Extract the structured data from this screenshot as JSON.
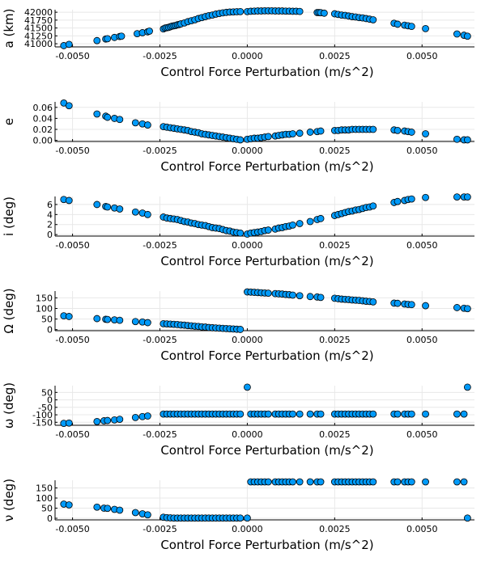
{
  "chart_data": [
    {
      "type": "scatter",
      "xlabel": "Control Force Perturbation (m/s^2)",
      "ylabel": "a (km)",
      "xlim": [
        -0.0055,
        0.0065
      ],
      "ylim": [
        40900,
        42080
      ],
      "xticks": [
        "-0.0050",
        "-0.0025",
        "0.0000",
        "0.0025",
        "0.0050"
      ],
      "xtick_values": [
        -0.005,
        -0.0025,
        0,
        0.0025,
        0.005
      ],
      "yticks": [
        "41000",
        "41250",
        "41500",
        "41750",
        "42000"
      ],
      "ytick_values": [
        41000,
        41250,
        41500,
        41750,
        42000
      ],
      "grid": true,
      "x": [
        -0.00525,
        -0.0051,
        -0.0043,
        -0.00405,
        -0.004,
        -0.0038,
        -0.00365,
        -0.0036,
        -0.00315,
        -0.003,
        -0.00285,
        -0.0028,
        -0.0024,
        -0.00235,
        -0.0023,
        -0.00225,
        -0.0022,
        -0.00215,
        -0.0021,
        -0.00205,
        -0.002,
        -0.00195,
        -0.0019,
        -0.0018,
        -0.0017,
        -0.0016,
        -0.0015,
        -0.0014,
        -0.0013,
        -0.0012,
        -0.0011,
        -0.001,
        -0.0009,
        -0.0008,
        -0.0007,
        -0.0006,
        -0.0005,
        -0.0004,
        -0.0003,
        -0.0002,
        0.0,
        0.0001,
        0.0002,
        0.0003,
        0.0004,
        0.0005,
        0.0006,
        0.0007,
        0.0008,
        0.0009,
        0.001,
        0.0011,
        0.0012,
        0.0013,
        0.0014,
        0.0015,
        0.002,
        0.00205,
        0.0021,
        0.0022,
        0.0025,
        0.0026,
        0.0027,
        0.0028,
        0.0029,
        0.003,
        0.0031,
        0.0032,
        0.0033,
        0.0034,
        0.0035,
        0.0036,
        0.0042,
        0.0043,
        0.0045,
        0.0046,
        0.0047,
        0.0051,
        0.006,
        0.0062,
        0.0063
      ],
      "y": [
        40940,
        40980,
        41100,
        41150,
        41160,
        41200,
        41230,
        41240,
        41320,
        41350,
        41380,
        41400,
        41470,
        41500,
        41510,
        41520,
        41540,
        41560,
        41570,
        41580,
        41600,
        41610,
        41630,
        41660,
        41700,
        41730,
        41760,
        41800,
        41830,
        41860,
        41890,
        41910,
        41940,
        41960,
        41980,
        41995,
        42005,
        42010,
        42015,
        42020,
        42020,
        42030,
        42035,
        42040,
        42040,
        42045,
        42045,
        42045,
        42040,
        42040,
        42040,
        42035,
        42035,
        42030,
        42030,
        42025,
        41990,
        41990,
        41985,
        41970,
        41950,
        41930,
        41910,
        41900,
        41880,
        41860,
        41850,
        41830,
        41820,
        41800,
        41780,
        41760,
        41650,
        41620,
        41590,
        41570,
        41550,
        41480,
        41310,
        41270,
        41240
      ]
    },
    {
      "type": "scatter",
      "xlabel": "Control Force Perturbation (m/s^2)",
      "ylabel": "e",
      "xlim": [
        -0.0055,
        0.0065
      ],
      "ylim": [
        -0.002,
        0.07
      ],
      "xticks": [
        "-0.0050",
        "-0.0025",
        "0.0000",
        "0.0025",
        "0.0050"
      ],
      "xtick_values": [
        -0.005,
        -0.0025,
        0,
        0.0025,
        0.005
      ],
      "yticks": [
        "0.00",
        "0.02",
        "0.04",
        "0.06"
      ],
      "ytick_values": [
        0,
        0.02,
        0.04,
        0.06
      ],
      "grid": true,
      "x": [
        -0.00525,
        -0.0051,
        -0.0043,
        -0.00405,
        -0.004,
        -0.0038,
        -0.00365,
        -0.0032,
        -0.003,
        -0.00285,
        -0.0024,
        -0.0023,
        -0.0022,
        -0.0021,
        -0.002,
        -0.0019,
        -0.0018,
        -0.0017,
        -0.0016,
        -0.0015,
        -0.0014,
        -0.0013,
        -0.0012,
        -0.0011,
        -0.001,
        -0.0009,
        -0.0008,
        -0.0007,
        -0.0006,
        -0.0005,
        -0.0004,
        -0.0003,
        -0.0002,
        0.0,
        0.0001,
        0.0002,
        0.0003,
        0.0004,
        0.0005,
        0.0006,
        0.0008,
        0.0009,
        0.001,
        0.0011,
        0.0012,
        0.0013,
        0.0015,
        0.0018,
        0.002,
        0.0021,
        0.0025,
        0.0026,
        0.0027,
        0.0028,
        0.0029,
        0.003,
        0.0031,
        0.0032,
        0.0033,
        0.0034,
        0.0035,
        0.0036,
        0.0042,
        0.0043,
        0.0045,
        0.0046,
        0.0047,
        0.0051,
        0.006,
        0.0062,
        0.0063
      ],
      "y": [
        0.068,
        0.063,
        0.048,
        0.044,
        0.042,
        0.04,
        0.038,
        0.032,
        0.03,
        0.028,
        0.025,
        0.024,
        0.023,
        0.022,
        0.021,
        0.02,
        0.019,
        0.018,
        0.016,
        0.015,
        0.014,
        0.012,
        0.011,
        0.01,
        0.009,
        0.008,
        0.007,
        0.006,
        0.005,
        0.004,
        0.003,
        0.002,
        0.001,
        0.002,
        0.003,
        0.004,
        0.004,
        0.005,
        0.006,
        0.007,
        0.008,
        0.009,
        0.01,
        0.011,
        0.011,
        0.012,
        0.013,
        0.015,
        0.016,
        0.017,
        0.018,
        0.018,
        0.019,
        0.019,
        0.019,
        0.02,
        0.02,
        0.02,
        0.02,
        0.02,
        0.02,
        0.02,
        0.019,
        0.018,
        0.017,
        0.016,
        0.015,
        0.012,
        0.002,
        0.001,
        0.001
      ]
    },
    {
      "type": "scatter",
      "xlabel": "Control Force Perturbation (m/s^2)",
      "ylabel": "i (deg)",
      "xlim": [
        -0.0055,
        0.0065
      ],
      "ylim": [
        -0.3,
        7.6
      ],
      "xticks": [
        "-0.0050",
        "-0.0025",
        "0.0000",
        "0.0025",
        "0.0050"
      ],
      "xtick_values": [
        -0.005,
        -0.0025,
        0,
        0.0025,
        0.005
      ],
      "yticks": [
        "0",
        "2",
        "4",
        "6"
      ],
      "ytick_values": [
        0,
        2,
        4,
        6
      ],
      "grid": true,
      "x": [
        -0.00525,
        -0.0051,
        -0.0043,
        -0.00405,
        -0.004,
        -0.0038,
        -0.00365,
        -0.0032,
        -0.003,
        -0.00285,
        -0.0024,
        -0.0023,
        -0.0022,
        -0.0021,
        -0.002,
        -0.0019,
        -0.0018,
        -0.0017,
        -0.0016,
        -0.0015,
        -0.0014,
        -0.0013,
        -0.0012,
        -0.0011,
        -0.001,
        -0.0009,
        -0.0008,
        -0.0007,
        -0.0006,
        -0.0005,
        -0.0004,
        -0.0003,
        -0.0002,
        0.0,
        0.0001,
        0.0002,
        0.0003,
        0.0004,
        0.0005,
        0.0006,
        0.0008,
        0.0009,
        0.001,
        0.0011,
        0.0012,
        0.0013,
        0.0015,
        0.0018,
        0.002,
        0.0021,
        0.0025,
        0.0026,
        0.0027,
        0.0028,
        0.0029,
        0.003,
        0.0031,
        0.0032,
        0.0033,
        0.0034,
        0.0035,
        0.0036,
        0.0042,
        0.0043,
        0.0045,
        0.0046,
        0.0047,
        0.0051,
        0.006,
        0.0062,
        0.0063
      ],
      "y": [
        7.0,
        6.8,
        6.0,
        5.6,
        5.5,
        5.3,
        5.1,
        4.5,
        4.3,
        4.0,
        3.5,
        3.3,
        3.2,
        3.1,
        3.0,
        2.8,
        2.6,
        2.5,
        2.3,
        2.2,
        2.0,
        1.9,
        1.8,
        1.6,
        1.4,
        1.3,
        1.2,
        1.0,
        0.8,
        0.7,
        0.5,
        0.4,
        0.3,
        0.1,
        0.3,
        0.4,
        0.5,
        0.6,
        0.8,
        0.9,
        1.1,
        1.3,
        1.4,
        1.6,
        1.7,
        1.9,
        2.2,
        2.6,
        3.0,
        3.2,
        3.8,
        4.0,
        4.2,
        4.4,
        4.6,
        4.7,
        4.9,
        5.0,
        5.2,
        5.4,
        5.5,
        5.7,
        6.4,
        6.6,
        6.8,
        7.0,
        7.1,
        7.4,
        7.5,
        7.5,
        7.5
      ]
    },
    {
      "type": "scatter",
      "xlabel": "Control Force Perturbation (m/s^2)",
      "ylabel": "Ω (deg)",
      "xlim": [
        -0.0055,
        0.0065
      ],
      "ylim": [
        -5,
        182
      ],
      "xticks": [
        "-0.0050",
        "-0.0025",
        "0.0000",
        "0.0025",
        "0.0050"
      ],
      "xtick_values": [
        -0.005,
        -0.0025,
        0,
        0.0025,
        0.005
      ],
      "yticks": [
        "0",
        "50",
        "100",
        "150"
      ],
      "ytick_values": [
        0,
        50,
        100,
        150
      ],
      "grid": true,
      "x": [
        -0.00525,
        -0.0051,
        -0.0043,
        -0.00405,
        -0.004,
        -0.0038,
        -0.00365,
        -0.0032,
        -0.003,
        -0.00285,
        -0.0024,
        -0.0023,
        -0.0022,
        -0.0021,
        -0.002,
        -0.0019,
        -0.0018,
        -0.0017,
        -0.0016,
        -0.0015,
        -0.0014,
        -0.0013,
        -0.0012,
        -0.0011,
        -0.001,
        -0.0009,
        -0.0008,
        -0.0007,
        -0.0006,
        -0.0005,
        -0.0004,
        -0.0003,
        -0.0002,
        0.0,
        0.0001,
        0.0002,
        0.0003,
        0.0004,
        0.0005,
        0.0006,
        0.0008,
        0.0009,
        0.001,
        0.0011,
        0.0012,
        0.0013,
        0.0015,
        0.0018,
        0.002,
        0.0021,
        0.0025,
        0.0026,
        0.0027,
        0.0028,
        0.0029,
        0.003,
        0.0031,
        0.0032,
        0.0033,
        0.0034,
        0.0035,
        0.0036,
        0.0042,
        0.0043,
        0.0045,
        0.0046,
        0.0047,
        0.0051,
        0.006,
        0.0062,
        0.0063
      ],
      "y": [
        65,
        62,
        52,
        49,
        48,
        46,
        44,
        38,
        36,
        33,
        28,
        27,
        26,
        25,
        24,
        22,
        21,
        19,
        18,
        16,
        15,
        13,
        12,
        10,
        9,
        8,
        7,
        6,
        5,
        4,
        3,
        2,
        1,
        178,
        177,
        176,
        175,
        174,
        173,
        172,
        170,
        169,
        168,
        166,
        165,
        163,
        160,
        156,
        154,
        152,
        148,
        146,
        144,
        143,
        142,
        140,
        139,
        138,
        136,
        134,
        133,
        131,
        125,
        124,
        121,
        119,
        118,
        113,
        104,
        101,
        99
      ]
    },
    {
      "type": "scatter",
      "xlabel": "Control Force Perturbation (m/s^2)",
      "ylabel": "ω (deg)",
      "xlim": [
        -0.0055,
        0.0065
      ],
      "ylim": [
        -170,
        95
      ],
      "xticks": [
        "-0.0050",
        "-0.0025",
        "0.0000",
        "0.0025",
        "0.0050"
      ],
      "xtick_values": [
        -0.005,
        -0.0025,
        0,
        0.0025,
        0.005
      ],
      "yticks": [
        "-150",
        "-100",
        "-50",
        "0",
        "50"
      ],
      "ytick_values": [
        -150,
        -100,
        -50,
        0,
        50
      ],
      "grid": true,
      "x": [
        -0.00525,
        -0.0051,
        -0.0043,
        -0.0041,
        -0.004,
        -0.0038,
        -0.00365,
        -0.0032,
        -0.003,
        -0.00285,
        -0.0024,
        -0.0023,
        -0.0022,
        -0.0021,
        -0.002,
        -0.0019,
        -0.0018,
        -0.0017,
        -0.0016,
        -0.0015,
        -0.0014,
        -0.0013,
        -0.0012,
        -0.0011,
        -0.001,
        -0.0009,
        -0.0008,
        -0.0007,
        -0.0006,
        -0.0005,
        -0.0004,
        -0.0003,
        -0.0002,
        0.0,
        0.0001,
        0.0002,
        0.0003,
        0.0004,
        0.0005,
        0.0006,
        0.0008,
        0.0009,
        0.001,
        0.0011,
        0.0012,
        0.0013,
        0.0015,
        0.0018,
        0.002,
        0.0021,
        0.0025,
        0.0026,
        0.0027,
        0.0028,
        0.0029,
        0.003,
        0.0031,
        0.0032,
        0.0033,
        0.0034,
        0.0035,
        0.0036,
        0.0042,
        0.0043,
        0.0045,
        0.0046,
        0.0047,
        0.0051,
        0.006,
        0.0062,
        0.0063
      ],
      "y": [
        -157,
        -155,
        -145,
        -140,
        -138,
        -134,
        -130,
        -118,
        -112,
        -108,
        -95,
        -95,
        -95,
        -95,
        -95,
        -95,
        -95,
        -95,
        -95,
        -95,
        -95,
        -95,
        -95,
        -95,
        -95,
        -95,
        -95,
        -95,
        -95,
        -95,
        -95,
        -95,
        -95,
        85,
        -95,
        -95,
        -95,
        -95,
        -95,
        -95,
        -95,
        -95,
        -95,
        -95,
        -95,
        -95,
        -95,
        -95,
        -95,
        -95,
        -95,
        -95,
        -95,
        -95,
        -95,
        -95,
        -95,
        -95,
        -95,
        -95,
        -95,
        -95,
        -95,
        -95,
        -95,
        -95,
        -95,
        -95,
        -95,
        -95,
        85
      ]
    },
    {
      "type": "scatter",
      "xlabel": "Control Force Perturbation (m/s^2)",
      "ylabel": "ν (deg)",
      "xlim": [
        -0.0055,
        0.0065
      ],
      "ylim": [
        -8,
        188
      ],
      "xticks": [
        "-0.0050",
        "-0.0025",
        "0.0000",
        "0.0025",
        "0.0050"
      ],
      "xtick_values": [
        -0.005,
        -0.0025,
        0,
        0.0025,
        0.005
      ],
      "yticks": [
        "0",
        "50",
        "100",
        "150"
      ],
      "ytick_values": [
        0,
        50,
        100,
        150
      ],
      "grid": true,
      "x": [
        -0.00525,
        -0.0051,
        -0.0043,
        -0.0041,
        -0.004,
        -0.0038,
        -0.00365,
        -0.0032,
        -0.003,
        -0.00285,
        -0.0024,
        -0.0023,
        -0.0022,
        -0.0021,
        -0.002,
        -0.0019,
        -0.0018,
        -0.0017,
        -0.0016,
        -0.0015,
        -0.0014,
        -0.0013,
        -0.0012,
        -0.0011,
        -0.001,
        -0.0009,
        -0.0008,
        -0.0007,
        -0.0006,
        -0.0005,
        -0.0004,
        -0.0003,
        -0.0002,
        0.0,
        0.0001,
        0.0002,
        0.0003,
        0.0004,
        0.0005,
        0.0006,
        0.0008,
        0.0009,
        0.001,
        0.0011,
        0.0012,
        0.0013,
        0.0015,
        0.0018,
        0.002,
        0.0021,
        0.0025,
        0.0026,
        0.0027,
        0.0028,
        0.0029,
        0.003,
        0.0031,
        0.0032,
        0.0033,
        0.0034,
        0.0035,
        0.0036,
        0.0042,
        0.0043,
        0.0045,
        0.0046,
        0.0047,
        0.0051,
        0.006,
        0.0062,
        0.0063
      ],
      "y": [
        70,
        66,
        55,
        50,
        49,
        44,
        40,
        28,
        22,
        17,
        5,
        3,
        2,
        1,
        1,
        1,
        1,
        1,
        1,
        1,
        1,
        1,
        1,
        1,
        1,
        1,
        1,
        1,
        1,
        1,
        1,
        1,
        1,
        1,
        180,
        180,
        180,
        180,
        180,
        180,
        180,
        180,
        180,
        180,
        180,
        180,
        180,
        180,
        180,
        180,
        180,
        180,
        180,
        180,
        180,
        180,
        180,
        180,
        180,
        180,
        180,
        180,
        180,
        180,
        180,
        180,
        180,
        180,
        180,
        180,
        1
      ]
    }
  ]
}
